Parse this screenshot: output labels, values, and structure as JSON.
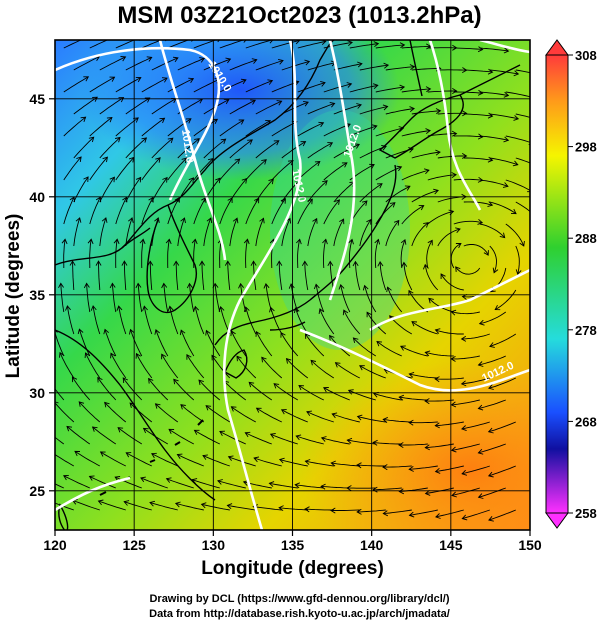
{
  "title": "MSM 03Z21Oct2023 (1013.2hPa)",
  "axes": {
    "xlabel": "Longitude (degrees)",
    "ylabel": "Latitude  (degrees)",
    "x_ticks": [
      "120",
      "125",
      "130",
      "135",
      "140",
      "145",
      "150"
    ],
    "y_ticks": [
      "25",
      "30",
      "35",
      "40",
      "45"
    ],
    "xlim": [
      120,
      150
    ],
    "ylim": [
      23,
      48
    ]
  },
  "colorbar": {
    "tick_labels": [
      "308",
      "298",
      "288",
      "278",
      "268",
      "258"
    ],
    "range": [
      258,
      308
    ],
    "colors": {
      "top": "#ff3b3b",
      "orange": "#ff9a1a",
      "yellow": "#f5f500",
      "green": "#2fd02f",
      "cyan": "#25dcdc",
      "blue": "#1a50ff",
      "navy": "#1010a0",
      "magenta": "#ff30ff"
    }
  },
  "contour_labels": [
    "1010.0",
    "1012.0",
    "1012.0",
    "1012.0",
    "1012.0"
  ],
  "credits": {
    "line1": "Drawing by DCL (https://www.gfd-dennou.org/library/dcl/)",
    "line2": "Data from http://database.rish.kyoto-u.ac.jp/arch/jmadata/"
  }
}
